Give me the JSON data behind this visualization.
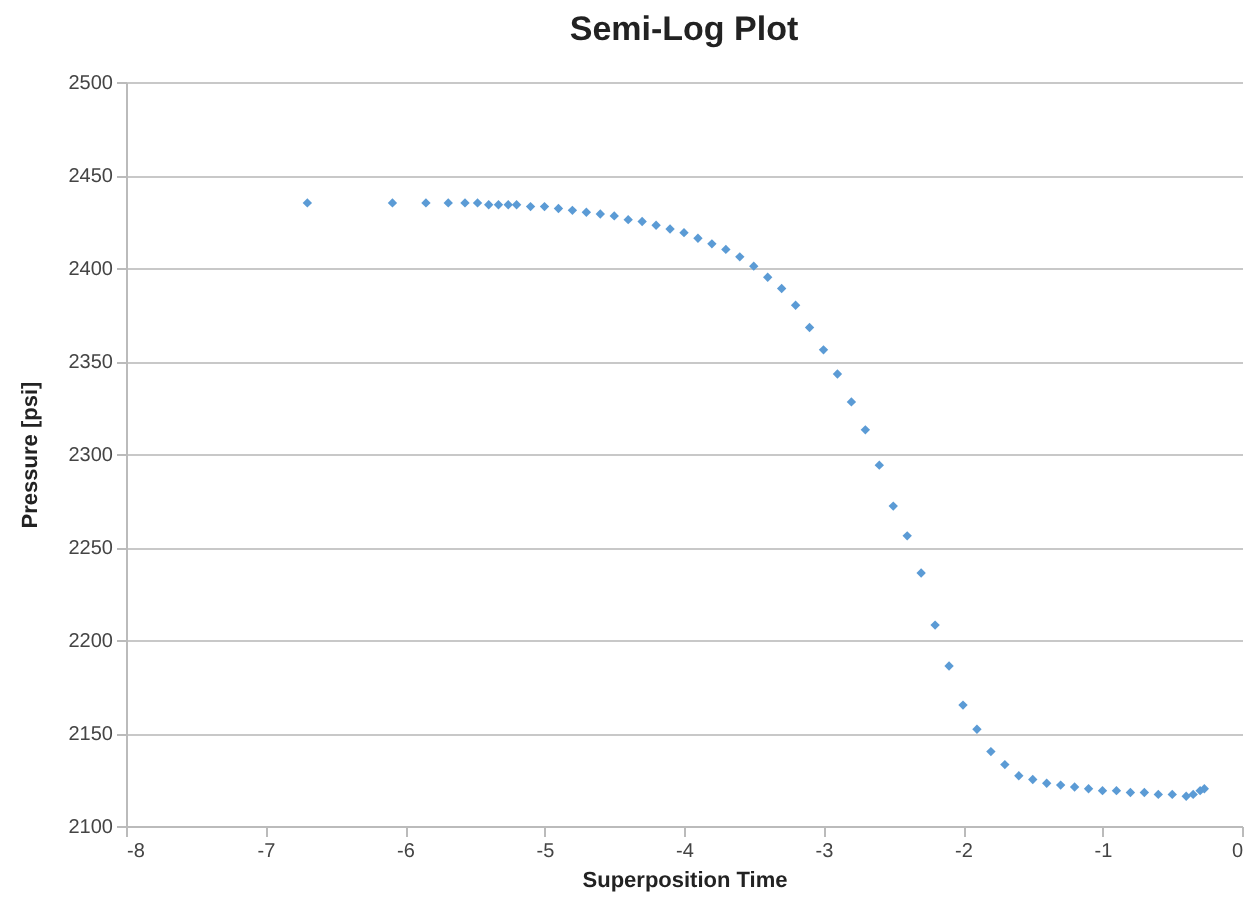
{
  "chart_data": {
    "type": "scatter",
    "title": "Semi-Log Plot",
    "xlabel": "Superposition Time",
    "ylabel": "Pressure [psi]",
    "x": [
      -6.7,
      -6.09,
      -5.85,
      -5.69,
      -5.57,
      -5.48,
      -5.4,
      -5.33,
      -5.26,
      -5.2,
      -5.1,
      -5.0,
      -4.9,
      -4.8,
      -4.7,
      -4.6,
      -4.5,
      -4.4,
      -4.3,
      -4.2,
      -4.1,
      -4.0,
      -3.9,
      -3.8,
      -3.7,
      -3.6,
      -3.5,
      -3.4,
      -3.3,
      -3.2,
      -3.1,
      -3.0,
      -2.9,
      -2.8,
      -2.7,
      -2.6,
      -2.5,
      -2.4,
      -2.3,
      -2.2,
      -2.1,
      -2.0,
      -1.9,
      -1.8,
      -1.7,
      -1.6,
      -1.5,
      -1.4,
      -1.3,
      -1.2,
      -1.1,
      -1.0,
      -0.9,
      -0.8,
      -0.7,
      -0.6,
      -0.5,
      -0.4,
      -0.35,
      -0.3,
      -0.27
    ],
    "series": [
      {
        "color": "#5b9bd5",
        "values": [
          2435,
          2435,
          2435,
          2435,
          2435,
          2435,
          2434,
          2434,
          2434,
          2434,
          2433,
          2433,
          2432,
          2431,
          2430,
          2429,
          2428,
          2426,
          2425,
          2423,
          2421,
          2419,
          2416,
          2413,
          2410,
          2406,
          2401,
          2395,
          2389,
          2380,
          2368,
          2356,
          2343,
          2328,
          2313,
          2294,
          2272,
          2256,
          2236,
          2208,
          2186,
          2165,
          2152,
          2140,
          2133,
          2127,
          2125,
          2123,
          2122,
          2121,
          2120,
          2119,
          2119,
          2118,
          2118,
          2117,
          2117,
          2116,
          2117,
          2119,
          2120
        ]
      }
    ],
    "xlim": [
      -8,
      0
    ],
    "xticks": [
      -8,
      -7,
      -6,
      -5,
      -4,
      -3,
      -2,
      -1,
      0
    ],
    "ylim": [
      2100,
      2500
    ],
    "yticks": [
      2100,
      2150,
      2200,
      2250,
      2300,
      2350,
      2400,
      2450,
      2500
    ],
    "grid": "y",
    "marker": "diamond"
  }
}
